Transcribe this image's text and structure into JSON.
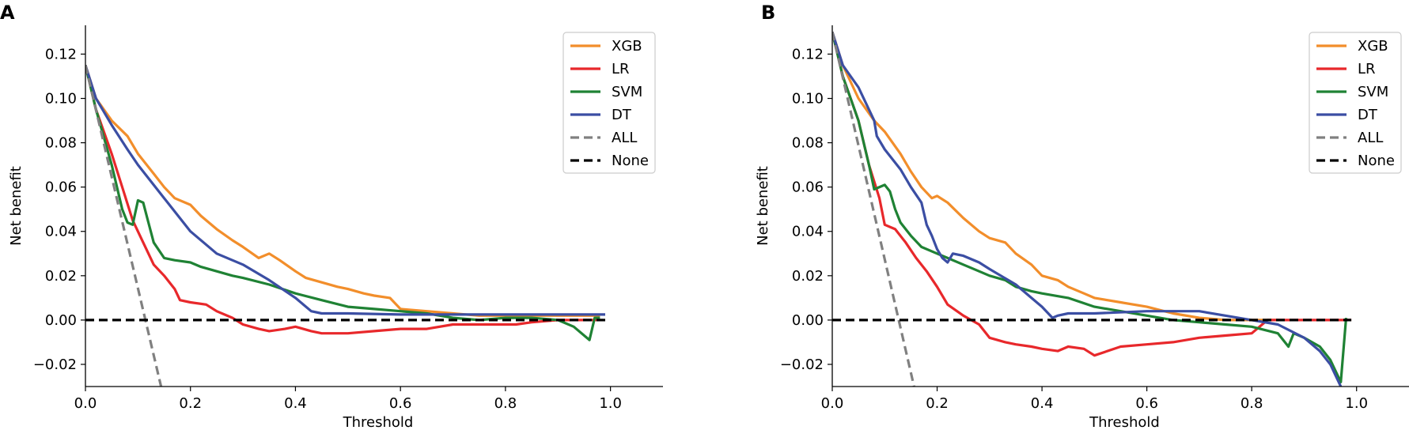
{
  "chart_data": [
    {
      "type": "line",
      "panel_label": "A",
      "xlabel": "Threshold",
      "ylabel": "Net benefit",
      "xlim": [
        0.0,
        1.1
      ],
      "ylim": [
        -0.03,
        0.133
      ],
      "xticks": [
        0.0,
        0.2,
        0.4,
        0.6,
        0.8,
        1.0
      ],
      "xtick_labels": [
        "0.0",
        "0.2",
        "0.4",
        "0.6",
        "0.8",
        "1.0"
      ],
      "yticks": [
        -0.02,
        0.0,
        0.02,
        0.04,
        0.06,
        0.08,
        0.1,
        0.12
      ],
      "ytick_labels": [
        "−0.02",
        "0.00",
        "0.02",
        "0.04",
        "0.06",
        "0.08",
        "0.10",
        "0.12"
      ],
      "legend_position": "top-right",
      "series": [
        {
          "name": "XGB",
          "color": "#f28e2b",
          "dash": "solid",
          "x": [
            0,
            0.02,
            0.05,
            0.08,
            0.1,
            0.13,
            0.15,
            0.17,
            0.2,
            0.22,
            0.25,
            0.28,
            0.3,
            0.33,
            0.35,
            0.37,
            0.4,
            0.42,
            0.45,
            0.48,
            0.5,
            0.53,
            0.55,
            0.58,
            0.6,
            0.65,
            0.7,
            0.75,
            0.8,
            0.85,
            0.9,
            0.95,
            0.98
          ],
          "y": [
            0.115,
            0.1,
            0.09,
            0.083,
            0.075,
            0.066,
            0.06,
            0.055,
            0.052,
            0.047,
            0.041,
            0.036,
            0.033,
            0.028,
            0.03,
            0.027,
            0.022,
            0.019,
            0.017,
            0.015,
            0.014,
            0.012,
            0.011,
            0.01,
            0.005,
            0.004,
            0.003,
            0.002,
            0.002,
            0.002,
            0.002,
            0.002,
            0.002
          ]
        },
        {
          "name": "LR",
          "color": "#e8282b",
          "dash": "solid",
          "x": [
            0,
            0.02,
            0.05,
            0.07,
            0.09,
            0.11,
            0.13,
            0.15,
            0.17,
            0.18,
            0.2,
            0.23,
            0.25,
            0.28,
            0.3,
            0.33,
            0.35,
            0.38,
            0.4,
            0.43,
            0.45,
            0.5,
            0.55,
            0.6,
            0.65,
            0.7,
            0.75,
            0.8,
            0.82,
            0.85,
            0.9,
            0.95,
            0.98
          ],
          "y": [
            0.115,
            0.095,
            0.075,
            0.06,
            0.045,
            0.035,
            0.025,
            0.02,
            0.014,
            0.009,
            0.008,
            0.007,
            0.004,
            0.001,
            -0.002,
            -0.004,
            -0.005,
            -0.004,
            -0.003,
            -0.005,
            -0.006,
            -0.006,
            -0.005,
            -0.004,
            -0.004,
            -0.002,
            -0.002,
            -0.002,
            -0.002,
            -0.001,
            0.0,
            0.0,
            0.0
          ]
        },
        {
          "name": "SVM",
          "color": "#1f8234",
          "dash": "solid",
          "x": [
            0,
            0.02,
            0.05,
            0.07,
            0.08,
            0.09,
            0.1,
            0.11,
            0.12,
            0.13,
            0.15,
            0.17,
            0.2,
            0.22,
            0.25,
            0.28,
            0.3,
            0.35,
            0.4,
            0.45,
            0.5,
            0.55,
            0.6,
            0.65,
            0.7,
            0.75,
            0.8,
            0.85,
            0.9,
            0.93,
            0.96,
            0.97,
            0.98
          ],
          "y": [
            0.115,
            0.095,
            0.07,
            0.05,
            0.044,
            0.043,
            0.054,
            0.053,
            0.044,
            0.035,
            0.028,
            0.027,
            0.026,
            0.024,
            0.022,
            0.02,
            0.019,
            0.016,
            0.012,
            0.009,
            0.006,
            0.005,
            0.004,
            0.003,
            0.001,
            0.0,
            0.001,
            0.001,
            0.0,
            -0.003,
            -0.009,
            0.001,
            0.001
          ]
        },
        {
          "name": "DT",
          "color": "#3b4ea3",
          "dash": "solid",
          "x": [
            0,
            0.02,
            0.05,
            0.08,
            0.1,
            0.15,
            0.2,
            0.25,
            0.3,
            0.35,
            0.4,
            0.43,
            0.45,
            0.5,
            0.6,
            0.7,
            0.8,
            0.9,
            0.99
          ],
          "y": [
            0.115,
            0.1,
            0.088,
            0.077,
            0.07,
            0.055,
            0.04,
            0.03,
            0.025,
            0.018,
            0.01,
            0.004,
            0.003,
            0.003,
            0.0025,
            0.0025,
            0.0025,
            0.0025,
            0.0025
          ]
        },
        {
          "name": "ALL",
          "color": "#808080",
          "dash": "dashed",
          "x": [
            0,
            0.144
          ],
          "y": [
            0.115,
            -0.03
          ]
        },
        {
          "name": "None",
          "color": "#000000",
          "dash": "dashed",
          "x": [
            0,
            0.99
          ],
          "y": [
            0,
            0
          ]
        }
      ]
    },
    {
      "type": "line",
      "panel_label": "B",
      "xlabel": "Threshold",
      "ylabel": "Net benefit",
      "xlim": [
        0.0,
        1.1
      ],
      "ylim": [
        -0.03,
        0.133
      ],
      "xticks": [
        0.0,
        0.2,
        0.4,
        0.6,
        0.8,
        1.0
      ],
      "xtick_labels": [
        "0.0",
        "0.2",
        "0.4",
        "0.6",
        "0.8",
        "1.0"
      ],
      "yticks": [
        -0.02,
        0.0,
        0.02,
        0.04,
        0.06,
        0.08,
        0.1,
        0.12
      ],
      "ytick_labels": [
        "−0.02",
        "0.00",
        "0.02",
        "0.04",
        "0.06",
        "0.08",
        "0.10",
        "0.12"
      ],
      "legend_position": "top-right",
      "series": [
        {
          "name": "XGB",
          "color": "#f28e2b",
          "dash": "solid",
          "x": [
            0,
            0.02,
            0.05,
            0.08,
            0.1,
            0.13,
            0.15,
            0.17,
            0.19,
            0.2,
            0.22,
            0.25,
            0.28,
            0.3,
            0.33,
            0.35,
            0.38,
            0.4,
            0.43,
            0.45,
            0.48,
            0.5,
            0.55,
            0.6,
            0.65,
            0.7,
            0.75,
            0.8,
            0.85
          ],
          "y": [
            0.13,
            0.115,
            0.1,
            0.09,
            0.085,
            0.075,
            0.067,
            0.06,
            0.055,
            0.056,
            0.053,
            0.046,
            0.04,
            0.037,
            0.035,
            0.03,
            0.025,
            0.02,
            0.018,
            0.015,
            0.012,
            0.01,
            0.008,
            0.006,
            0.003,
            0.001,
            0.0,
            0.0,
            0.0
          ]
        },
        {
          "name": "LR",
          "color": "#e8282b",
          "dash": "solid",
          "x": [
            0,
            0.02,
            0.05,
            0.07,
            0.09,
            0.1,
            0.12,
            0.14,
            0.16,
            0.18,
            0.2,
            0.22,
            0.25,
            0.28,
            0.3,
            0.33,
            0.35,
            0.38,
            0.4,
            0.43,
            0.45,
            0.48,
            0.5,
            0.55,
            0.6,
            0.65,
            0.7,
            0.75,
            0.8,
            0.83,
            0.85,
            0.9,
            0.95,
            0.99
          ],
          "y": [
            0.13,
            0.11,
            0.09,
            0.07,
            0.055,
            0.043,
            0.041,
            0.035,
            0.028,
            0.022,
            0.015,
            0.007,
            0.002,
            -0.002,
            -0.008,
            -0.01,
            -0.011,
            -0.012,
            -0.013,
            -0.014,
            -0.012,
            -0.013,
            -0.016,
            -0.012,
            -0.011,
            -0.01,
            -0.008,
            -0.007,
            -0.006,
            0.0,
            0.0,
            0.0,
            0.0,
            0.0
          ]
        },
        {
          "name": "SVM",
          "color": "#1f8234",
          "dash": "solid",
          "x": [
            0,
            0.02,
            0.05,
            0.07,
            0.08,
            0.1,
            0.11,
            0.12,
            0.13,
            0.15,
            0.17,
            0.2,
            0.22,
            0.25,
            0.28,
            0.3,
            0.33,
            0.35,
            0.38,
            0.4,
            0.45,
            0.5,
            0.55,
            0.6,
            0.65,
            0.7,
            0.75,
            0.8,
            0.85,
            0.87,
            0.88,
            0.9,
            0.93,
            0.95,
            0.97,
            0.98
          ],
          "y": [
            0.13,
            0.11,
            0.09,
            0.07,
            0.059,
            0.061,
            0.058,
            0.05,
            0.044,
            0.038,
            0.033,
            0.03,
            0.028,
            0.025,
            0.022,
            0.02,
            0.018,
            0.015,
            0.013,
            0.012,
            0.01,
            0.006,
            0.004,
            0.002,
            0.0,
            -0.001,
            -0.002,
            -0.003,
            -0.006,
            -0.012,
            -0.006,
            -0.008,
            -0.012,
            -0.018,
            -0.028,
            0.001
          ]
        },
        {
          "name": "DT",
          "color": "#3b4ea3",
          "dash": "solid",
          "x": [
            0,
            0.02,
            0.05,
            0.08,
            0.085,
            0.1,
            0.13,
            0.15,
            0.17,
            0.18,
            0.19,
            0.2,
            0.21,
            0.22,
            0.23,
            0.25,
            0.28,
            0.3,
            0.35,
            0.38,
            0.4,
            0.42,
            0.43,
            0.45,
            0.5,
            0.6,
            0.7,
            0.8,
            0.85,
            0.9,
            0.93,
            0.95,
            0.97
          ],
          "y": [
            0.13,
            0.115,
            0.105,
            0.09,
            0.083,
            0.077,
            0.068,
            0.06,
            0.053,
            0.043,
            0.038,
            0.032,
            0.028,
            0.026,
            0.03,
            0.029,
            0.026,
            0.023,
            0.016,
            0.01,
            0.006,
            0.001,
            0.002,
            0.003,
            0.003,
            0.004,
            0.004,
            0.0,
            -0.002,
            -0.008,
            -0.014,
            -0.02,
            -0.03
          ]
        },
        {
          "name": "ALL",
          "color": "#808080",
          "dash": "dashed",
          "x": [
            0,
            0.156
          ],
          "y": [
            0.13,
            -0.03
          ]
        },
        {
          "name": "None",
          "color": "#000000",
          "dash": "dashed",
          "x": [
            0,
            0.99
          ],
          "y": [
            0,
            0
          ]
        }
      ]
    }
  ]
}
